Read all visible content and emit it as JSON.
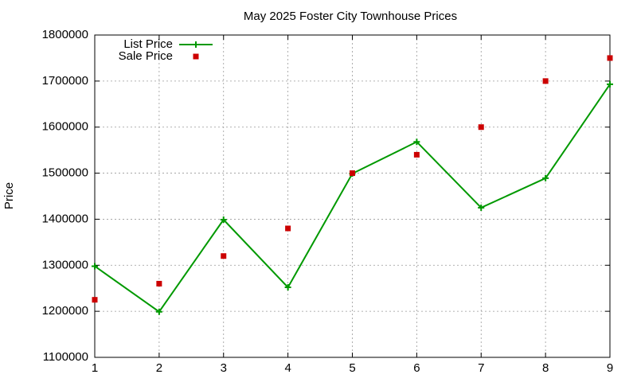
{
  "chart_data": {
    "type": "line",
    "title": "May 2025 Foster City Townhouse Prices",
    "y_label": "Price",
    "x": [
      1,
      2,
      3,
      4,
      5,
      6,
      7,
      8,
      9
    ],
    "xlim": [
      1,
      9
    ],
    "xticks": [
      1,
      2,
      3,
      4,
      5,
      6,
      7,
      8,
      9
    ],
    "ylim": [
      1100000,
      1800000
    ],
    "yticks": [
      1100000,
      1200000,
      1300000,
      1400000,
      1500000,
      1600000,
      1700000,
      1800000
    ],
    "grid": true,
    "legend": "top-left",
    "series": [
      {
        "name": "List Price",
        "color": "#009900",
        "mode": "lines+markers",
        "marker": "plus",
        "values": [
          1298000,
          1199000,
          1399000,
          1252000,
          1499000,
          1568000,
          1425000,
          1489000,
          1693000
        ]
      },
      {
        "name": "Sale Price",
        "color": "#cc0000",
        "mode": "markers",
        "marker": "square",
        "values": [
          1225000,
          1260000,
          1320000,
          1380000,
          1500000,
          1540000,
          1600000,
          1700000,
          1750000
        ]
      }
    ]
  }
}
